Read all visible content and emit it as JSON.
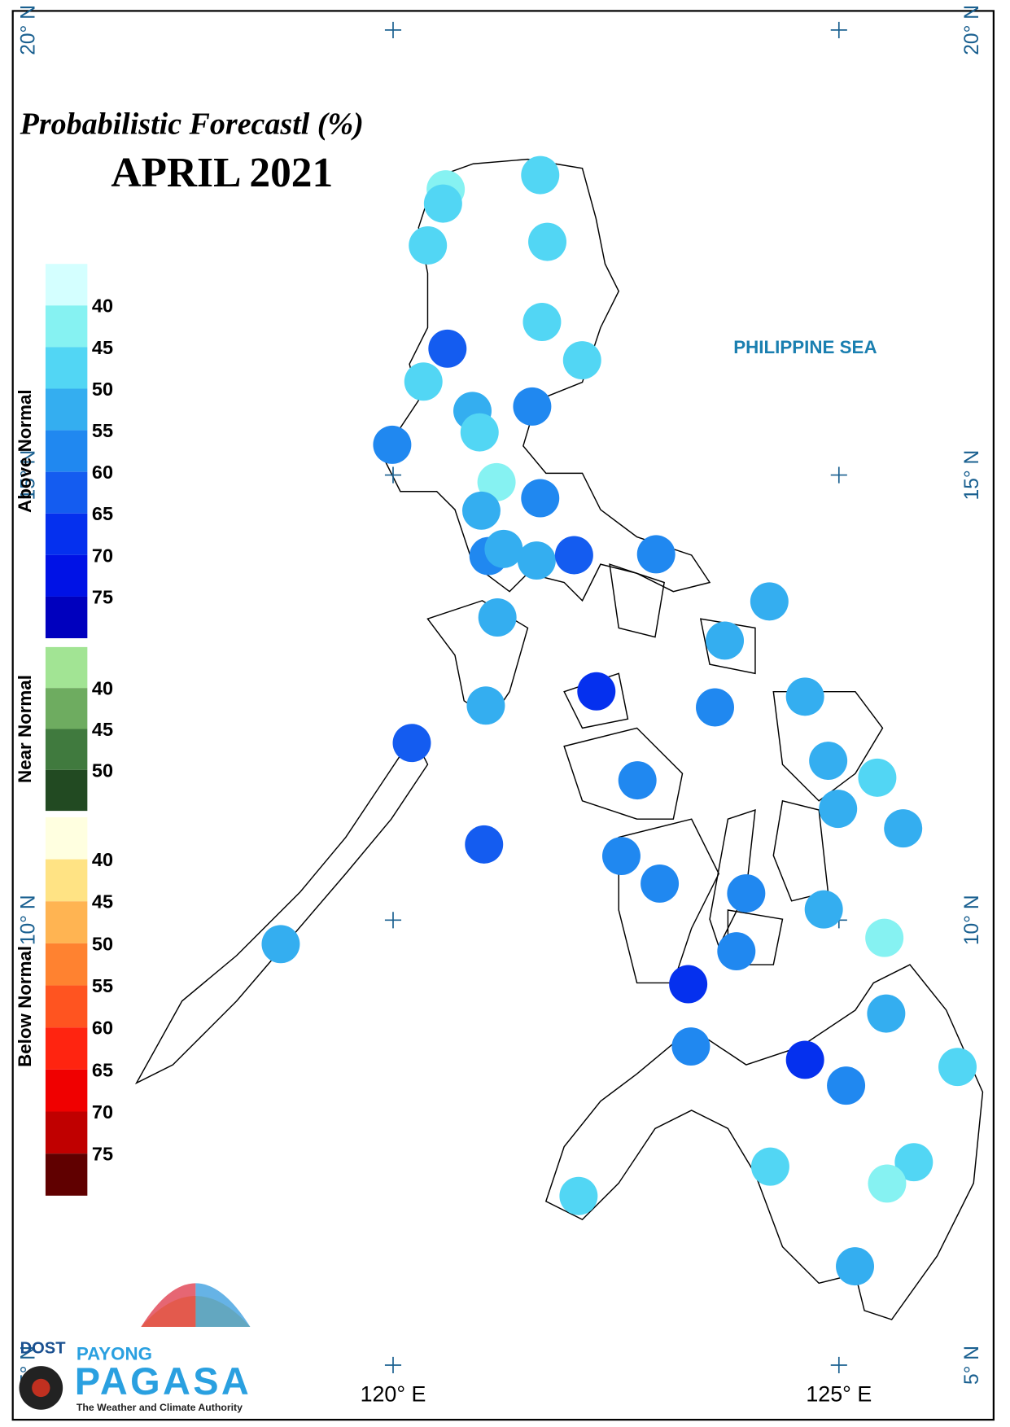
{
  "chart_data": {
    "type": "map",
    "title": "Probabilistic Forecastl (%)",
    "subtitle": "APRIL 2021",
    "sea_label": "PHILIPPINE SEA",
    "lat_ticks": [
      {
        "value": 20,
        "label": "20° N"
      },
      {
        "value": 15,
        "label": "15° N"
      },
      {
        "value": 10,
        "label": "10° N"
      },
      {
        "value": 5,
        "label": "5° N"
      }
    ],
    "lon_ticks": [
      {
        "value": 120,
        "label": "120° E"
      },
      {
        "value": 125,
        "label": "125° E"
      }
    ],
    "legend": [
      {
        "name": "Above Normal",
        "ticks": [
          40,
          45,
          50,
          55,
          60,
          65,
          70,
          75
        ],
        "colors": [
          "#d4ffff",
          "#86f2f2",
          "#52d6f4",
          "#34aef0",
          "#2088f0",
          "#145cf0",
          "#0530ee",
          "#0012e6",
          "#0000be"
        ]
      },
      {
        "name": "Near Normal",
        "ticks": [
          40,
          45,
          50
        ],
        "colors": [
          "#a2e494",
          "#6eac60",
          "#407a3e",
          "#224a22"
        ]
      },
      {
        "name": "Below Normal",
        "ticks": [
          40,
          45,
          50,
          55,
          60,
          65,
          70,
          75
        ],
        "colors": [
          "#ffffe0",
          "#ffe384",
          "#ffb452",
          "#ff8230",
          "#ff5420",
          "#ff2410",
          "#f00000",
          "#c00000",
          "#600000"
        ]
      }
    ],
    "stations": [
      {
        "lon": 121.65,
        "lat": 18.37,
        "value": 47
      },
      {
        "lon": 120.59,
        "lat": 18.21,
        "value": 42
      },
      {
        "lon": 120.56,
        "lat": 18.05,
        "value": 47
      },
      {
        "lon": 120.39,
        "lat": 17.58,
        "value": 47
      },
      {
        "lon": 121.73,
        "lat": 17.62,
        "value": 47
      },
      {
        "lon": 121.67,
        "lat": 16.72,
        "value": 47
      },
      {
        "lon": 120.61,
        "lat": 16.42,
        "value": 62
      },
      {
        "lon": 122.12,
        "lat": 16.29,
        "value": 47
      },
      {
        "lon": 120.34,
        "lat": 16.05,
        "value": 47
      },
      {
        "lon": 120.89,
        "lat": 15.72,
        "value": 52
      },
      {
        "lon": 121.56,
        "lat": 15.77,
        "value": 57
      },
      {
        "lon": 120.97,
        "lat": 15.48,
        "value": 47
      },
      {
        "lon": 119.99,
        "lat": 15.34,
        "value": 57
      },
      {
        "lon": 121.16,
        "lat": 14.92,
        "value": 42
      },
      {
        "lon": 121.65,
        "lat": 14.74,
        "value": 57
      },
      {
        "lon": 120.99,
        "lat": 14.6,
        "value": 52
      },
      {
        "lon": 121.07,
        "lat": 14.09,
        "value": 57
      },
      {
        "lon": 121.24,
        "lat": 14.17,
        "value": 52
      },
      {
        "lon": 121.61,
        "lat": 14.04,
        "value": 52
      },
      {
        "lon": 122.03,
        "lat": 14.1,
        "value": 62
      },
      {
        "lon": 122.95,
        "lat": 14.11,
        "value": 57
      },
      {
        "lon": 124.22,
        "lat": 13.58,
        "value": 52
      },
      {
        "lon": 121.17,
        "lat": 13.4,
        "value": 52
      },
      {
        "lon": 123.72,
        "lat": 13.14,
        "value": 52
      },
      {
        "lon": 122.28,
        "lat": 12.57,
        "value": 67
      },
      {
        "lon": 121.04,
        "lat": 12.41,
        "value": 52
      },
      {
        "lon": 123.61,
        "lat": 12.39,
        "value": 57
      },
      {
        "lon": 124.62,
        "lat": 12.51,
        "value": 52
      },
      {
        "lon": 120.21,
        "lat": 11.99,
        "value": 62
      },
      {
        "lon": 124.88,
        "lat": 11.79,
        "value": 52
      },
      {
        "lon": 125.43,
        "lat": 11.6,
        "value": 47
      },
      {
        "lon": 122.74,
        "lat": 11.57,
        "value": 57
      },
      {
        "lon": 124.99,
        "lat": 11.25,
        "value": 52
      },
      {
        "lon": 125.72,
        "lat": 11.03,
        "value": 52
      },
      {
        "lon": 121.02,
        "lat": 10.85,
        "value": 62
      },
      {
        "lon": 122.56,
        "lat": 10.72,
        "value": 57
      },
      {
        "lon": 122.99,
        "lat": 10.41,
        "value": 57
      },
      {
        "lon": 123.96,
        "lat": 10.3,
        "value": 57
      },
      {
        "lon": 124.83,
        "lat": 10.12,
        "value": 52
      },
      {
        "lon": 125.51,
        "lat": 9.8,
        "value": 42
      },
      {
        "lon": 118.74,
        "lat": 9.73,
        "value": 52
      },
      {
        "lon": 123.85,
        "lat": 9.65,
        "value": 57
      },
      {
        "lon": 123.31,
        "lat": 9.28,
        "value": 67
      },
      {
        "lon": 125.53,
        "lat": 8.95,
        "value": 52
      },
      {
        "lon": 123.34,
        "lat": 8.58,
        "value": 57
      },
      {
        "lon": 124.62,
        "lat": 8.43,
        "value": 67
      },
      {
        "lon": 125.08,
        "lat": 8.14,
        "value": 57
      },
      {
        "lon": 126.33,
        "lat": 8.35,
        "value": 47
      },
      {
        "lon": 124.23,
        "lat": 7.23,
        "value": 47
      },
      {
        "lon": 125.84,
        "lat": 7.28,
        "value": 47
      },
      {
        "lon": 125.54,
        "lat": 7.04,
        "value": 42
      },
      {
        "lon": 122.08,
        "lat": 6.9,
        "value": 47
      },
      {
        "lon": 125.18,
        "lat": 6.11,
        "value": 52
      }
    ]
  },
  "logo": {
    "agency": "DOST",
    "top": "PAYONG",
    "name": "PAGASA",
    "tagline": "The Weather and Climate Authority"
  }
}
